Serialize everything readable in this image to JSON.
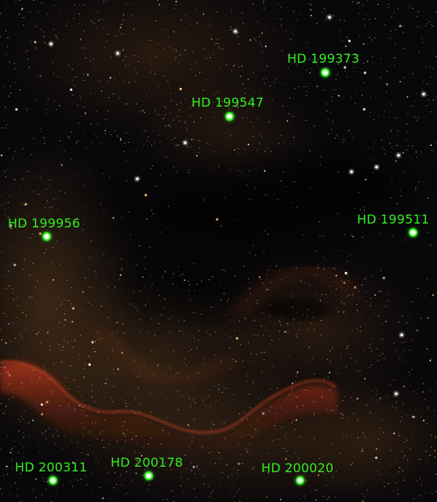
{
  "colors": {
    "annotation": "#33ee22",
    "sky": "#08070a",
    "nebula_red": "#7a1e10",
    "nebula_glow": "#3a2410"
  },
  "annotations": [
    {
      "id": "hd-199373",
      "label": "HD 199373"
    },
    {
      "id": "hd-199547",
      "label": "HD 199547"
    },
    {
      "id": "hd-199956",
      "label": "HD 199956"
    },
    {
      "id": "hd-199511",
      "label": "HD 199511"
    },
    {
      "id": "hd-200311",
      "label": "HD 200311"
    },
    {
      "id": "hd-200178",
      "label": "HD 200178"
    },
    {
      "id": "hd-200020",
      "label": "HD 200020"
    }
  ]
}
